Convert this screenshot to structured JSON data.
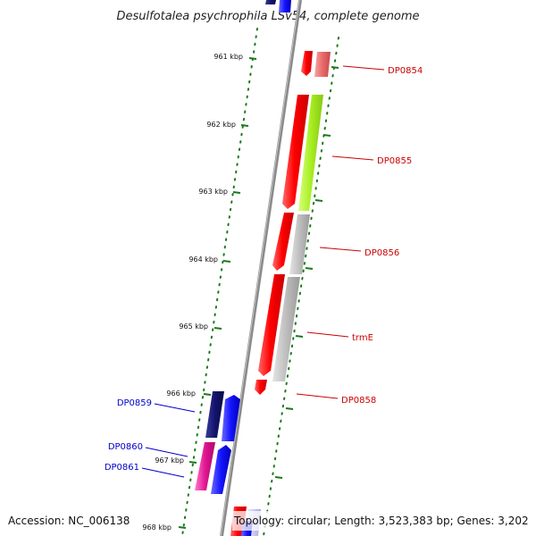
{
  "title": "Desulfotalea psychrophila LSv54, complete genome",
  "accession": "Accession: NC_006138",
  "summary": "Topology: circular; Length: 3,523,383 bp; Genes: 3,202",
  "ticks": [
    "961 kbp",
    "962 kbp",
    "963 kbp",
    "964 kbp",
    "965 kbp",
    "966 kbp",
    "967 kbp",
    "968 kbp"
  ],
  "gene_labels": [
    {
      "text": "DP0854",
      "color": "#cc0000"
    },
    {
      "text": "DP0855",
      "color": "#cc0000"
    },
    {
      "text": "DP0856",
      "color": "#cc0000"
    },
    {
      "text": "trmE",
      "color": "#cc0000"
    },
    {
      "text": "DP0858",
      "color": "#cc0000"
    },
    {
      "text": "DP0859",
      "color": "#0000cc"
    },
    {
      "text": "DP0860",
      "color": "#0000cc"
    },
    {
      "text": "DP0861",
      "color": "#0000cc"
    }
  ],
  "colors": {
    "backbone": "#8a8a8a",
    "tick": "#1a7a1a",
    "forward_strand": "#ff0000",
    "reverse_strand": "#0000ff",
    "gene_label_forward": "#cc0000",
    "gene_label_reverse": "#0000cc"
  }
}
